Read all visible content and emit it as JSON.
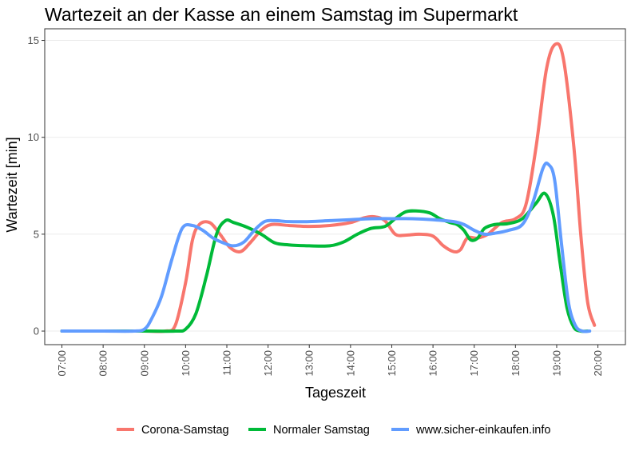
{
  "chart_data": {
    "type": "line",
    "title": "Wartezeit an der Kasse an einem Samstag im Supermarkt",
    "xlabel": "Tageszeit",
    "ylabel": "Wartezeit [min]",
    "x_ticks": [
      "07:00",
      "08:00",
      "09:00",
      "10:00",
      "11:00",
      "12:00",
      "13:00",
      "14:00",
      "15:00",
      "16:00",
      "17:00",
      "18:00",
      "19:00",
      "20:00"
    ],
    "y_ticks": [
      0,
      5,
      10,
      15
    ],
    "xlim": [
      "06:35",
      "20:40"
    ],
    "ylim": [
      -0.7,
      15.6
    ],
    "grid": true,
    "legend_position": "bottom",
    "series": [
      {
        "name": "Corona-Samstag",
        "color": "#F8766D",
        "points": [
          [
            "07:00",
            0
          ],
          [
            "08:00",
            0
          ],
          [
            "09:00",
            0
          ],
          [
            "09:30",
            0
          ],
          [
            "09:45",
            0.3
          ],
          [
            "10:00",
            2.5
          ],
          [
            "10:10",
            4.7
          ],
          [
            "10:20",
            5.5
          ],
          [
            "10:35",
            5.6
          ],
          [
            "10:50",
            5.0
          ],
          [
            "11:05",
            4.3
          ],
          [
            "11:20",
            4.1
          ],
          [
            "11:35",
            4.6
          ],
          [
            "11:50",
            5.2
          ],
          [
            "12:05",
            5.5
          ],
          [
            "12:30",
            5.45
          ],
          [
            "13:00",
            5.4
          ],
          [
            "13:30",
            5.45
          ],
          [
            "14:00",
            5.6
          ],
          [
            "14:20",
            5.85
          ],
          [
            "14:35",
            5.9
          ],
          [
            "14:50",
            5.7
          ],
          [
            "15:05",
            5.0
          ],
          [
            "15:20",
            4.95
          ],
          [
            "15:40",
            5.0
          ],
          [
            "16:00",
            4.9
          ],
          [
            "16:15",
            4.4
          ],
          [
            "16:30",
            4.1
          ],
          [
            "16:40",
            4.2
          ],
          [
            "16:50",
            4.8
          ],
          [
            "17:05",
            4.8
          ],
          [
            "17:20",
            5.0
          ],
          [
            "17:40",
            5.6
          ],
          [
            "18:00",
            5.8
          ],
          [
            "18:15",
            6.5
          ],
          [
            "18:30",
            9.5
          ],
          [
            "18:45",
            13.5
          ],
          [
            "18:58",
            14.8
          ],
          [
            "19:10",
            14.0
          ],
          [
            "19:25",
            9.5
          ],
          [
            "19:35",
            5.0
          ],
          [
            "19:45",
            1.5
          ],
          [
            "19:55",
            0.3
          ]
        ]
      },
      {
        "name": "Normaler Samstag",
        "color": "#00BA38",
        "points": [
          [
            "07:00",
            0
          ],
          [
            "08:00",
            0
          ],
          [
            "09:00",
            0
          ],
          [
            "09:45",
            0
          ],
          [
            "10:00",
            0.1
          ],
          [
            "10:15",
            0.9
          ],
          [
            "10:30",
            2.8
          ],
          [
            "10:45",
            5.0
          ],
          [
            "10:58",
            5.7
          ],
          [
            "11:10",
            5.6
          ],
          [
            "11:30",
            5.35
          ],
          [
            "11:50",
            5.0
          ],
          [
            "12:10",
            4.55
          ],
          [
            "12:30",
            4.45
          ],
          [
            "13:00",
            4.4
          ],
          [
            "13:30",
            4.4
          ],
          [
            "13:50",
            4.6
          ],
          [
            "14:10",
            5.0
          ],
          [
            "14:30",
            5.3
          ],
          [
            "14:50",
            5.4
          ],
          [
            "15:05",
            5.8
          ],
          [
            "15:20",
            6.15
          ],
          [
            "15:35",
            6.2
          ],
          [
            "15:55",
            6.1
          ],
          [
            "16:10",
            5.8
          ],
          [
            "16:25",
            5.6
          ],
          [
            "16:35",
            5.5
          ],
          [
            "16:45",
            5.2
          ],
          [
            "16:55",
            4.7
          ],
          [
            "17:05",
            4.8
          ],
          [
            "17:15",
            5.3
          ],
          [
            "17:30",
            5.5
          ],
          [
            "17:50",
            5.55
          ],
          [
            "18:10",
            5.8
          ],
          [
            "18:30",
            6.6
          ],
          [
            "18:43",
            7.1
          ],
          [
            "18:55",
            6.0
          ],
          [
            "19:05",
            3.5
          ],
          [
            "19:15",
            1.2
          ],
          [
            "19:25",
            0.2
          ],
          [
            "19:35",
            0
          ],
          [
            "19:45",
            0
          ]
        ]
      },
      {
        "name": "www.sicher-einkaufen.info",
        "color": "#619CFF",
        "points": [
          [
            "07:00",
            0
          ],
          [
            "08:00",
            0
          ],
          [
            "08:45",
            0
          ],
          [
            "09:00",
            0.1
          ],
          [
            "09:10",
            0.6
          ],
          [
            "09:25",
            1.8
          ],
          [
            "09:40",
            3.7
          ],
          [
            "09:55",
            5.3
          ],
          [
            "10:10",
            5.45
          ],
          [
            "10:25",
            5.2
          ],
          [
            "10:40",
            4.8
          ],
          [
            "10:55",
            4.55
          ],
          [
            "11:10",
            4.4
          ],
          [
            "11:25",
            4.6
          ],
          [
            "11:40",
            5.2
          ],
          [
            "11:55",
            5.65
          ],
          [
            "12:10",
            5.7
          ],
          [
            "12:30",
            5.65
          ],
          [
            "13:00",
            5.65
          ],
          [
            "13:30",
            5.7
          ],
          [
            "14:00",
            5.75
          ],
          [
            "14:30",
            5.8
          ],
          [
            "15:00",
            5.8
          ],
          [
            "15:30",
            5.8
          ],
          [
            "16:00",
            5.75
          ],
          [
            "16:30",
            5.65
          ],
          [
            "16:45",
            5.5
          ],
          [
            "17:00",
            5.2
          ],
          [
            "17:15",
            5.0
          ],
          [
            "17:30",
            5.05
          ],
          [
            "17:50",
            5.2
          ],
          [
            "18:10",
            5.5
          ],
          [
            "18:25",
            6.6
          ],
          [
            "18:40",
            8.4
          ],
          [
            "18:48",
            8.6
          ],
          [
            "18:57",
            7.8
          ],
          [
            "19:07",
            4.5
          ],
          [
            "19:17",
            1.5
          ],
          [
            "19:27",
            0.3
          ],
          [
            "19:37",
            0
          ],
          [
            "19:48",
            0
          ]
        ]
      }
    ]
  }
}
